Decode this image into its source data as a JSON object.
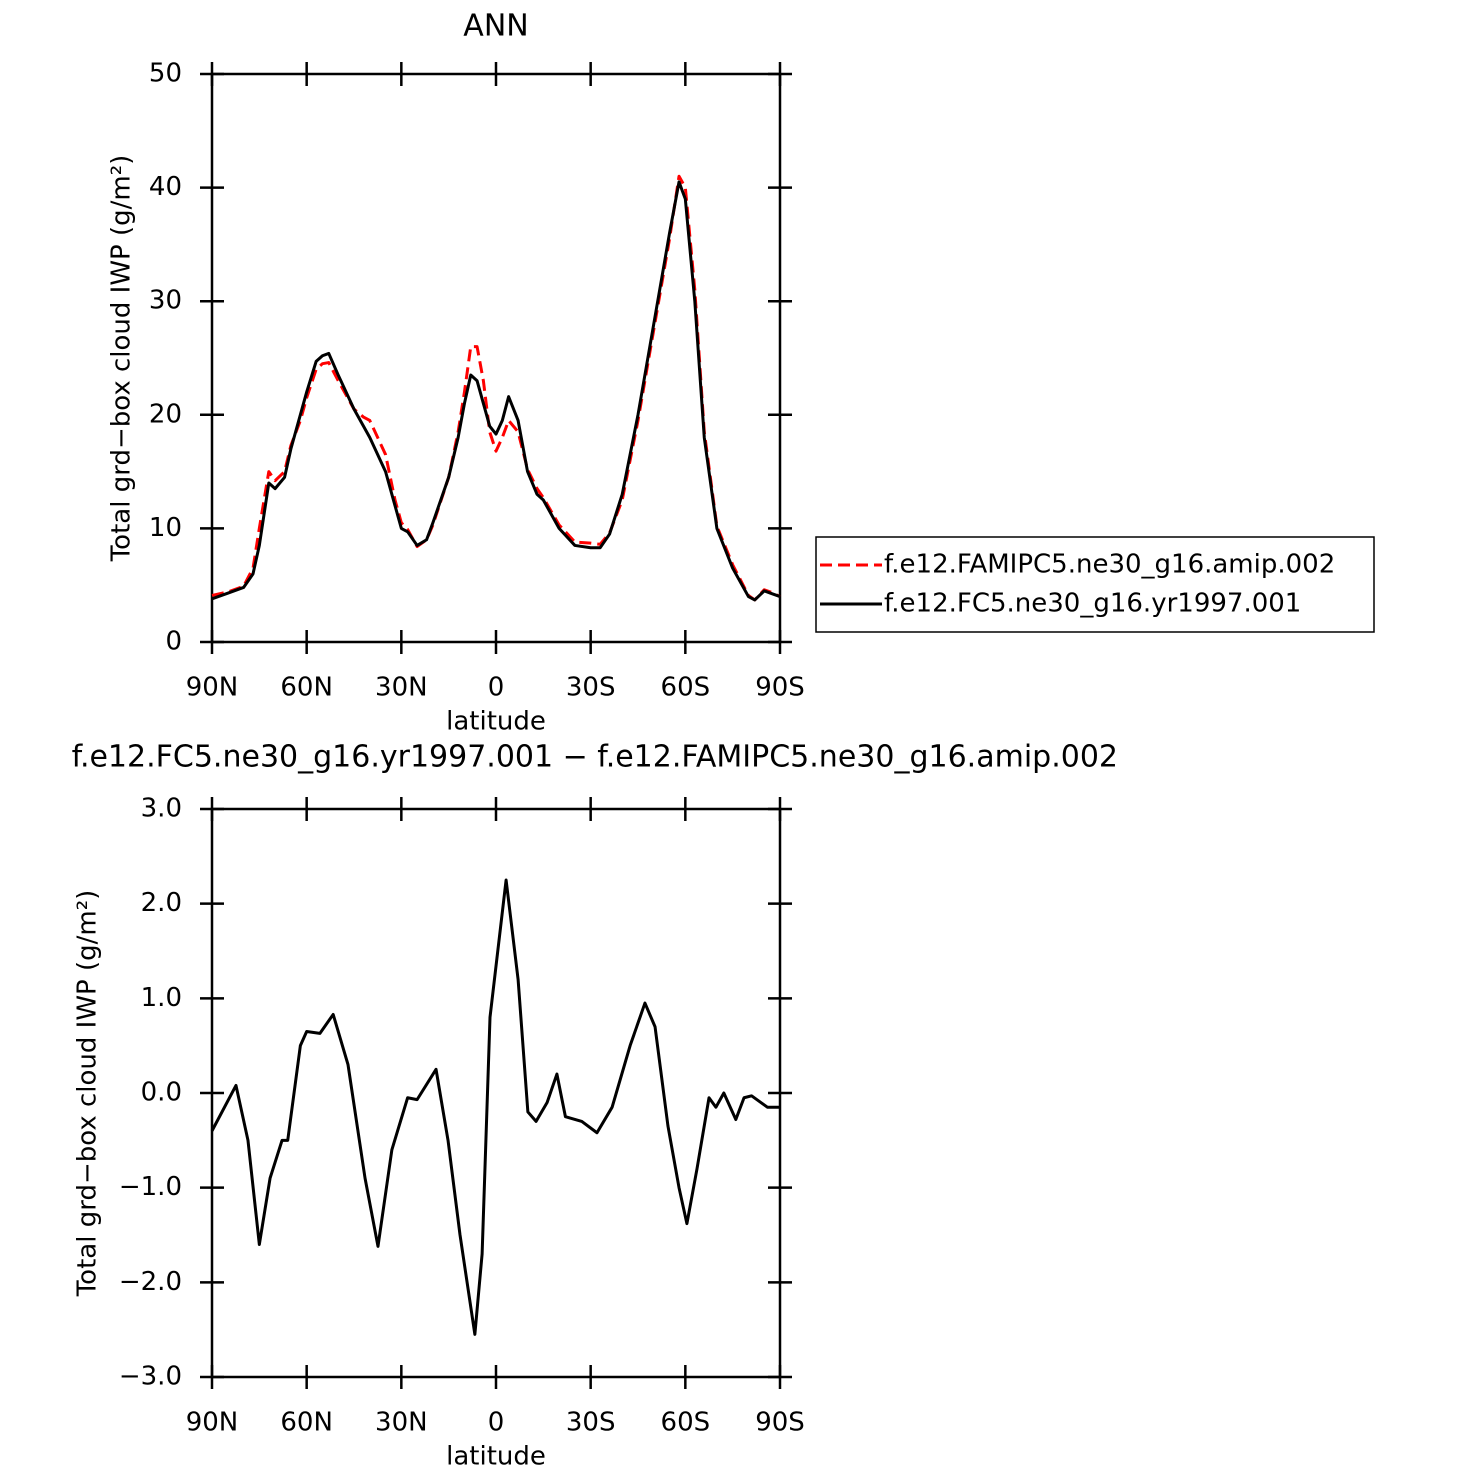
{
  "chart_data": [
    {
      "type": "line",
      "title": "ANN",
      "xlabel": "latitude",
      "ylabel": "Total grd−box cloud IWP (g/m²)",
      "xlim": [
        90,
        -90
      ],
      "xticks": [
        {
          "value": 90,
          "label": "90N"
        },
        {
          "value": 60,
          "label": "60N"
        },
        {
          "value": 30,
          "label": "30N"
        },
        0,
        {
          "value": -30,
          "label": "30S"
        },
        {
          "value": -60,
          "label": "60S"
        },
        {
          "value": -90,
          "label": "90S"
        }
      ],
      "ylim": [
        0,
        50
      ],
      "yticks": [
        0,
        10,
        20,
        30,
        40,
        50
      ],
      "legend": "right",
      "x": [
        90,
        85,
        80,
        77,
        75,
        72,
        70,
        67,
        65,
        62,
        60,
        57,
        55,
        53,
        50,
        45,
        42,
        40,
        35,
        32,
        30,
        28,
        25,
        22,
        20,
        15,
        12,
        10,
        8,
        6,
        4,
        2,
        0,
        -2,
        -4,
        -7,
        -10,
        -13,
        -15,
        -20,
        -25,
        -30,
        -33,
        -36,
        -40,
        -45,
        -50,
        -55,
        -58,
        -60,
        -63,
        -66,
        -70,
        -75,
        -80,
        -82,
        -85,
        -87,
        -90
      ],
      "series": [
        {
          "name": "f.e12.FAMIPC5.ne30_g16.amip.002",
          "color": "#ff0000",
          "linestyle": "dashed",
          "values": [
            4.1,
            4.4,
            4.9,
            6.5,
            10,
            15,
            14.2,
            15,
            17.3,
            19.5,
            21.5,
            24,
            24.5,
            24.6,
            23,
            20.5,
            19.8,
            19.5,
            16.5,
            12.5,
            10.5,
            9.9,
            8.4,
            9,
            10.3,
            14.5,
            18.5,
            22,
            26,
            26,
            23,
            18.5,
            16.8,
            18,
            19.5,
            18.5,
            15.2,
            13.5,
            12.7,
            10.3,
            8.8,
            8.7,
            8.6,
            9.6,
            12.5,
            19.5,
            27.5,
            35.5,
            41,
            40,
            31,
            18.5,
            10.2,
            6.8,
            4.1,
            3.7,
            4.6,
            4.4,
            4
          ]
        },
        {
          "name": "f.e12.FC5.ne30_g16.yr1997.001",
          "color": "#000000",
          "linestyle": "solid",
          "values": [
            3.8,
            4.3,
            4.8,
            6,
            8.5,
            14,
            13.5,
            14.5,
            17,
            20,
            22,
            24.7,
            25.2,
            25.4,
            23.5,
            20.5,
            19,
            18,
            15,
            12,
            10,
            9.7,
            8.5,
            9,
            10.5,
            14.5,
            18,
            21,
            23.5,
            23,
            21,
            19,
            18.3,
            19.5,
            21.6,
            19.5,
            15,
            13,
            12.5,
            10,
            8.5,
            8.3,
            8.3,
            9.5,
            13,
            20,
            28,
            36,
            40.5,
            39,
            30,
            18,
            10,
            6.5,
            4,
            3.7,
            4.5,
            4.3,
            4
          ]
        }
      ]
    },
    {
      "type": "line",
      "title": "f.e12.FC5.ne30_g16.yr1997.001 − f.e12.FAMIPC5.ne30_g16.amip.002",
      "xlabel": "latitude",
      "ylabel": "Total grd−box cloud IWP (g/m²)",
      "xlim": [
        90,
        -90
      ],
      "xticks": [
        {
          "value": 90,
          "label": "90N"
        },
        {
          "value": 60,
          "label": "60N"
        },
        {
          "value": 30,
          "label": "30N"
        },
        0,
        {
          "value": -30,
          "label": "30S"
        },
        {
          "value": -60,
          "label": "60S"
        },
        {
          "value": -90,
          "label": "90S"
        }
      ],
      "ylim": [
        -3,
        3
      ],
      "yticks": [
        {
          "value": -3,
          "label": "−3.0"
        },
        {
          "value": -2,
          "label": "−2.0"
        },
        {
          "value": -1,
          "label": "−1.0"
        },
        {
          "value": 0,
          "label": "0.0"
        },
        {
          "value": 1,
          "label": "1.0"
        },
        {
          "value": 2,
          "label": "2.0"
        },
        {
          "value": 3,
          "label": "3.0"
        }
      ],
      "x": [
        90,
        82.4,
        78.6,
        75,
        71.6,
        67.8,
        66,
        62,
        60,
        55.8,
        51.6,
        46.9,
        41.5,
        37.4,
        33,
        28,
        25,
        19,
        15.2,
        11.4,
        6.7,
        4.4,
        1.9,
        -3.2,
        -7,
        -10.1,
        -12.7,
        -16.2,
        -19.3,
        -22,
        -27.2,
        -32,
        -36.8,
        -42.5,
        -47.2,
        -50.4,
        -54.5,
        -58,
        -60.5,
        -63.7,
        -67.5,
        -69.7,
        -72.2,
        -76,
        -78.6,
        -81,
        -86,
        -90
      ],
      "series": [
        {
          "color": "#000000",
          "linestyle": "solid",
          "values": [
            -0.4,
            0.08,
            -0.5,
            -1.6,
            -0.9,
            -0.5,
            -0.5,
            0.5,
            0.65,
            0.63,
            0.83,
            0.3,
            -0.9,
            -1.62,
            -0.6,
            -0.05,
            -0.07,
            0.25,
            -0.5,
            -1.5,
            -2.55,
            -1.7,
            0.8,
            2.25,
            1.2,
            -0.2,
            -0.3,
            -0.1,
            0.2,
            -0.25,
            -0.3,
            -0.42,
            -0.15,
            0.5,
            0.95,
            0.7,
            -0.35,
            -1,
            -1.38,
            -0.8,
            -0.05,
            -0.15,
            0,
            -0.28,
            -0.05,
            -0.03,
            -0.15,
            -0.15
          ]
        }
      ]
    }
  ]
}
